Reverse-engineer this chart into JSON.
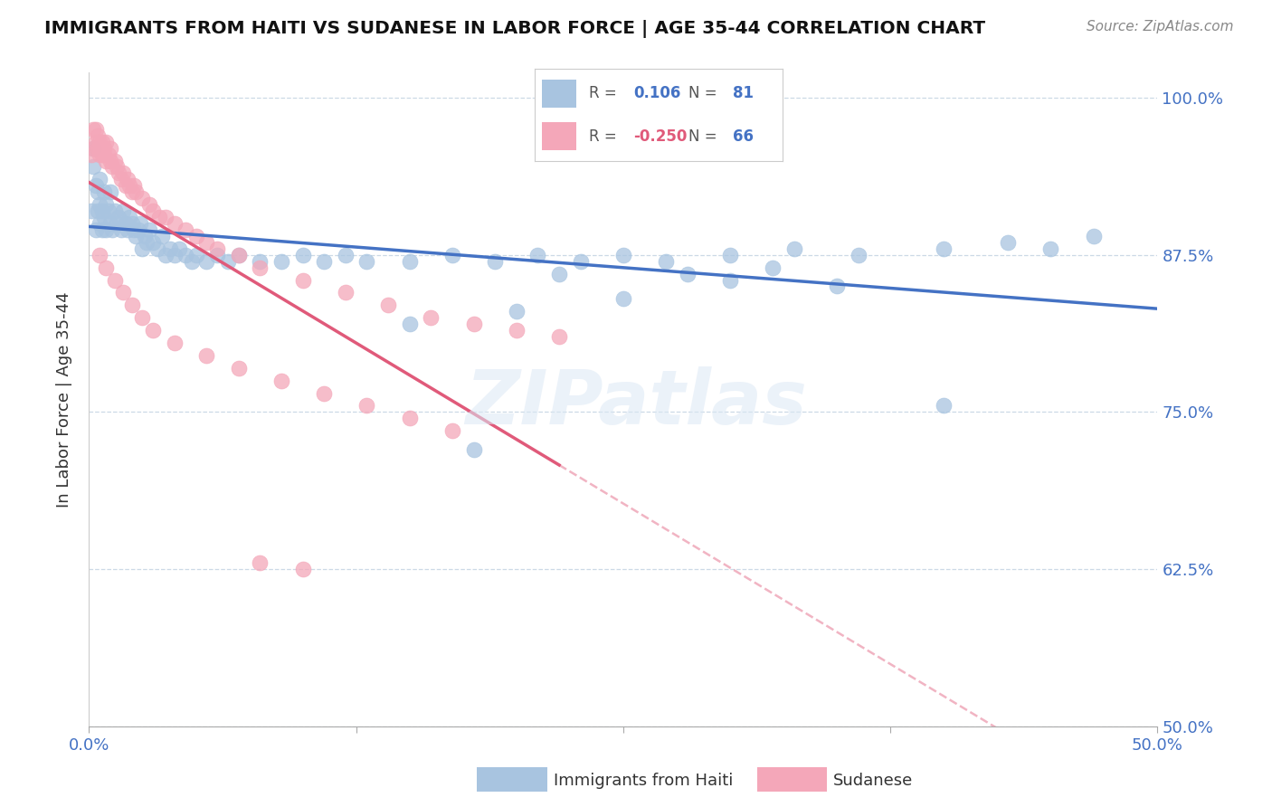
{
  "title": "IMMIGRANTS FROM HAITI VS SUDANESE IN LABOR FORCE | AGE 35-44 CORRELATION CHART",
  "source": "Source: ZipAtlas.com",
  "ylabel": "In Labor Force | Age 35-44",
  "xlim": [
    0.0,
    0.5
  ],
  "ylim": [
    0.5,
    1.02
  ],
  "yticks": [
    0.5,
    0.625,
    0.75,
    0.875,
    1.0
  ],
  "yticklabels": [
    "50.0%",
    "62.5%",
    "75.0%",
    "87.5%",
    "100.0%"
  ],
  "haiti_R": 0.106,
  "haiti_N": 81,
  "sudanese_R": -0.25,
  "sudanese_N": 66,
  "haiti_color": "#a8c4e0",
  "haiti_line_color": "#4472c4",
  "sudanese_color": "#f4a7b9",
  "sudanese_line_color": "#e05a7a",
  "background_color": "#ffffff",
  "haiti_x": [
    0.001,
    0.002,
    0.002,
    0.003,
    0.003,
    0.004,
    0.004,
    0.005,
    0.005,
    0.005,
    0.006,
    0.006,
    0.007,
    0.007,
    0.008,
    0.008,
    0.009,
    0.01,
    0.01,
    0.011,
    0.012,
    0.013,
    0.014,
    0.015,
    0.016,
    0.017,
    0.018,
    0.019,
    0.02,
    0.021,
    0.022,
    0.023,
    0.024,
    0.025,
    0.026,
    0.027,
    0.028,
    0.03,
    0.032,
    0.034,
    0.036,
    0.038,
    0.04,
    0.042,
    0.045,
    0.048,
    0.05,
    0.055,
    0.06,
    0.065,
    0.07,
    0.08,
    0.09,
    0.1,
    0.11,
    0.12,
    0.13,
    0.15,
    0.17,
    0.19,
    0.21,
    0.23,
    0.25,
    0.27,
    0.3,
    0.33,
    0.36,
    0.4,
    0.43,
    0.47,
    0.15,
    0.2,
    0.25,
    0.3,
    0.35,
    0.4,
    0.45,
    0.28,
    0.32,
    0.22,
    0.18
  ],
  "haiti_y": [
    0.91,
    0.945,
    0.96,
    0.895,
    0.93,
    0.91,
    0.925,
    0.9,
    0.915,
    0.935,
    0.895,
    0.91,
    0.905,
    0.925,
    0.915,
    0.895,
    0.91,
    0.9,
    0.925,
    0.895,
    0.91,
    0.9,
    0.905,
    0.895,
    0.91,
    0.9,
    0.895,
    0.905,
    0.9,
    0.895,
    0.89,
    0.895,
    0.9,
    0.88,
    0.89,
    0.885,
    0.895,
    0.885,
    0.88,
    0.89,
    0.875,
    0.88,
    0.875,
    0.88,
    0.875,
    0.87,
    0.875,
    0.87,
    0.875,
    0.87,
    0.875,
    0.87,
    0.87,
    0.875,
    0.87,
    0.875,
    0.87,
    0.87,
    0.875,
    0.87,
    0.875,
    0.87,
    0.875,
    0.87,
    0.875,
    0.88,
    0.875,
    0.88,
    0.885,
    0.89,
    0.82,
    0.83,
    0.84,
    0.855,
    0.85,
    0.755,
    0.88,
    0.86,
    0.865,
    0.86,
    0.72
  ],
  "sudanese_x": [
    0.001,
    0.002,
    0.002,
    0.003,
    0.003,
    0.004,
    0.004,
    0.005,
    0.005,
    0.006,
    0.006,
    0.007,
    0.007,
    0.008,
    0.008,
    0.009,
    0.01,
    0.01,
    0.011,
    0.012,
    0.013,
    0.014,
    0.015,
    0.016,
    0.017,
    0.018,
    0.019,
    0.02,
    0.021,
    0.022,
    0.025,
    0.028,
    0.03,
    0.033,
    0.036,
    0.04,
    0.045,
    0.05,
    0.055,
    0.06,
    0.07,
    0.08,
    0.1,
    0.12,
    0.14,
    0.16,
    0.18,
    0.2,
    0.22,
    0.005,
    0.008,
    0.012,
    0.016,
    0.02,
    0.025,
    0.03,
    0.04,
    0.055,
    0.07,
    0.09,
    0.11,
    0.13,
    0.15,
    0.17,
    0.1,
    0.08
  ],
  "sudanese_y": [
    0.955,
    0.96,
    0.975,
    0.965,
    0.975,
    0.96,
    0.97,
    0.955,
    0.965,
    0.955,
    0.965,
    0.955,
    0.96,
    0.95,
    0.965,
    0.955,
    0.95,
    0.96,
    0.945,
    0.95,
    0.945,
    0.94,
    0.935,
    0.94,
    0.93,
    0.935,
    0.93,
    0.925,
    0.93,
    0.925,
    0.92,
    0.915,
    0.91,
    0.905,
    0.905,
    0.9,
    0.895,
    0.89,
    0.885,
    0.88,
    0.875,
    0.865,
    0.855,
    0.845,
    0.835,
    0.825,
    0.82,
    0.815,
    0.81,
    0.875,
    0.865,
    0.855,
    0.845,
    0.835,
    0.825,
    0.815,
    0.805,
    0.795,
    0.785,
    0.775,
    0.765,
    0.755,
    0.745,
    0.735,
    0.625,
    0.63
  ]
}
